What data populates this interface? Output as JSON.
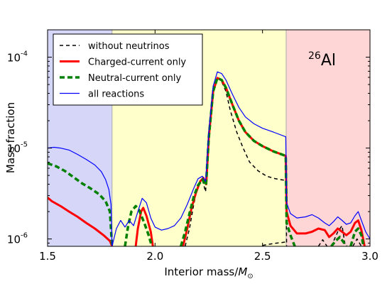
{
  "chart_data": {
    "type": "line",
    "title": "",
    "annotation": {
      "sup": "26",
      "text": "Al"
    },
    "xlabel": "Interior mass/",
    "xlabel_symbol": "M",
    "xlabel_sub": "⊙",
    "ylabel": "Mass fraction",
    "xlim": [
      1.5,
      3.0
    ],
    "ylim": [
      8.3e-07,
      0.0002
    ],
    "yscale": "log",
    "x_ticks": [
      1.5,
      2.0,
      2.5,
      3.0
    ],
    "x_tick_labels": [
      "1.5",
      "2.0",
      "2.5",
      "3.0"
    ],
    "y_ticks": [
      {
        "value": 1e-06,
        "base": "10",
        "exp": "-6"
      },
      {
        "value": 1e-05,
        "base": "10",
        "exp": "-5"
      },
      {
        "value": 0.0001,
        "base": "10",
        "exp": "-4"
      }
    ],
    "regions": [
      {
        "x0": 1.5,
        "x1": 1.8,
        "color": "#d5d6f8"
      },
      {
        "x0": 1.8,
        "x1": 2.61,
        "color": "#ffffcc"
      },
      {
        "x0": 2.61,
        "x1": 3.0,
        "color": "#ffd6d6"
      }
    ],
    "legend_position": "top-left",
    "series": [
      {
        "name": "without neutrinos",
        "color": "#000000",
        "width": 1.5,
        "dash": "5,4",
        "points": [
          [
            2.14,
            8.3e-07
          ],
          [
            2.16,
            1.3e-06
          ],
          [
            2.18,
            2.4e-06
          ],
          [
            2.2,
            4e-06
          ],
          [
            2.22,
            4.5e-06
          ],
          [
            2.235,
            3.3e-06
          ],
          [
            2.25,
            1.5e-05
          ],
          [
            2.27,
            4.5e-05
          ],
          [
            2.29,
            6e-05
          ],
          [
            2.31,
            5.4e-05
          ],
          [
            2.33,
            4.2e-05
          ],
          [
            2.35,
            2.6e-05
          ],
          [
            2.38,
            1.5e-05
          ],
          [
            2.41,
            1e-05
          ],
          [
            2.44,
            7e-06
          ],
          [
            2.48,
            5.6e-06
          ],
          [
            2.52,
            4.9e-06
          ],
          [
            2.56,
            4.6e-06
          ],
          [
            2.608,
            4.4e-06
          ],
          [
            2.612,
            8.3e-07
          ]
        ],
        "extra_segments": [
          [
            [
              2.5,
              8.5e-07
            ],
            [
              2.55,
              8.9e-07
            ],
            [
              2.6,
              9.2e-07
            ],
            [
              2.608,
              9.3e-07
            ]
          ],
          [
            [
              2.76,
              8.3e-07
            ],
            [
              2.78,
              9.8e-07
            ],
            [
              2.8,
              8.3e-07
            ]
          ],
          [
            [
              2.82,
              8.3e-07
            ],
            [
              2.85,
              1.2e-06
            ],
            [
              2.87,
              1.4e-06
            ],
            [
              2.885,
              8.3e-07
            ]
          ],
          [
            [
              2.92,
              8.3e-07
            ],
            [
              2.94,
              1e-06
            ],
            [
              2.96,
              8.3e-07
            ]
          ]
        ]
      },
      {
        "name": "Charged-current only",
        "color": "#ff0000",
        "width": 3,
        "dash": "",
        "points": [
          [
            1.5,
            2.85e-06
          ],
          [
            1.52,
            2.6e-06
          ],
          [
            1.56,
            2.3e-06
          ],
          [
            1.6,
            2e-06
          ],
          [
            1.64,
            1.75e-06
          ],
          [
            1.68,
            1.5e-06
          ],
          [
            1.72,
            1.3e-06
          ],
          [
            1.76,
            1.1e-06
          ],
          [
            1.79,
            9.5e-07
          ],
          [
            1.8,
            8.3e-07
          ]
        ],
        "extra_segments": [
          [
            [
              1.91,
              8.3e-07
            ],
            [
              1.92,
              1.3e-06
            ],
            [
              1.935,
              2e-06
            ],
            [
              1.945,
              2.2e-06
            ],
            [
              1.96,
              1.8e-06
            ],
            [
              1.98,
              1.2e-06
            ],
            [
              1.99,
              8.3e-07
            ]
          ],
          [
            [
              2.13,
              8.3e-07
            ],
            [
              2.15,
              1.3e-06
            ],
            [
              2.17,
              2.2e-06
            ],
            [
              2.19,
              3.2e-06
            ],
            [
              2.21,
              4.3e-06
            ],
            [
              2.225,
              4.7e-06
            ],
            [
              2.238,
              4e-06
            ],
            [
              2.25,
              1.3e-05
            ],
            [
              2.27,
              4.2e-05
            ],
            [
              2.29,
              5.9e-05
            ],
            [
              2.31,
              5.6e-05
            ],
            [
              2.33,
              4.6e-05
            ],
            [
              2.36,
              3e-05
            ],
            [
              2.39,
              2e-05
            ],
            [
              2.42,
              1.5e-05
            ],
            [
              2.46,
              1.2e-05
            ],
            [
              2.5,
              1.05e-05
            ],
            [
              2.55,
              9.2e-06
            ],
            [
              2.608,
              8.2e-06
            ],
            [
              2.612,
              2e-06
            ],
            [
              2.63,
              1.4e-06
            ],
            [
              2.66,
              1.15e-06
            ],
            [
              2.7,
              1.15e-06
            ],
            [
              2.73,
              1.2e-06
            ],
            [
              2.76,
              1.3e-06
            ],
            [
              2.79,
              1.25e-06
            ],
            [
              2.81,
              1.05e-06
            ],
            [
              2.83,
              1.15e-06
            ],
            [
              2.85,
              1.3e-06
            ],
            [
              2.87,
              1.2e-06
            ],
            [
              2.89,
              1.1e-06
            ],
            [
              2.91,
              1.2e-06
            ],
            [
              2.93,
              1.5e-06
            ],
            [
              2.945,
              1.6e-06
            ],
            [
              2.96,
              1.25e-06
            ],
            [
              2.975,
              8.3e-07
            ]
          ]
        ]
      },
      {
        "name": "Neutral-current only",
        "color": "#008000",
        "width": 3.5,
        "dash": "7,4",
        "points": [
          [
            1.5,
            6.8e-06
          ],
          [
            1.54,
            6.3e-06
          ],
          [
            1.58,
            5.6e-06
          ],
          [
            1.62,
            4.8e-06
          ],
          [
            1.66,
            4.1e-06
          ],
          [
            1.7,
            3.6e-06
          ],
          [
            1.74,
            3.1e-06
          ],
          [
            1.77,
            2.6e-06
          ],
          [
            1.79,
            2e-06
          ],
          [
            1.8,
            8.3e-07
          ]
        ],
        "extra_segments": [
          [
            [
              1.86,
              8.3e-07
            ],
            [
              1.875,
              1.4e-06
            ],
            [
              1.89,
              2e-06
            ],
            [
              1.91,
              2.3e-06
            ],
            [
              1.925,
              2.1e-06
            ],
            [
              1.95,
              1.5e-06
            ],
            [
              1.97,
              1.1e-06
            ],
            [
              1.985,
              8.3e-07
            ]
          ],
          [
            [
              2.12,
              8.3e-07
            ],
            [
              2.14,
              1.2e-06
            ],
            [
              2.16,
              1.9e-06
            ],
            [
              2.18,
              2.9e-06
            ],
            [
              2.2,
              3.9e-06
            ],
            [
              2.22,
              4.5e-06
            ],
            [
              2.237,
              3.9e-06
            ],
            [
              2.25,
              1.3e-05
            ],
            [
              2.27,
              4.2e-05
            ],
            [
              2.29,
              5.9e-05
            ],
            [
              2.31,
              5.6e-05
            ],
            [
              2.33,
              4.6e-05
            ],
            [
              2.36,
              3e-05
            ],
            [
              2.39,
              2e-05
            ],
            [
              2.42,
              1.5e-05
            ],
            [
              2.46,
              1.2e-05
            ],
            [
              2.5,
              1.05e-05
            ],
            [
              2.55,
              9.2e-06
            ],
            [
              2.608,
              8.2e-06
            ],
            [
              2.612,
              1.5e-06
            ],
            [
              2.63,
              1.1e-06
            ],
            [
              2.65,
              8.3e-07
            ]
          ],
          [
            [
              2.82,
              8.3e-07
            ],
            [
              2.84,
              9.5e-07
            ],
            [
              2.86,
              1.05e-06
            ],
            [
              2.88,
              9e-07
            ],
            [
              2.89,
              8.3e-07
            ]
          ],
          [
            [
              2.91,
              8.3e-07
            ],
            [
              2.93,
              1.2e-06
            ],
            [
              2.945,
              1.3e-06
            ],
            [
              2.96,
              1.1e-06
            ],
            [
              2.97,
              8.3e-07
            ]
          ]
        ]
      },
      {
        "name": "all reactions",
        "color": "#0000ff",
        "width": 1.2,
        "dash": "",
        "points": [
          [
            1.5,
            1e-05
          ],
          [
            1.53,
            1.02e-05
          ],
          [
            1.56,
            1e-05
          ],
          [
            1.6,
            9.5e-06
          ],
          [
            1.64,
            8.5e-06
          ],
          [
            1.68,
            7.5e-06
          ],
          [
            1.72,
            6.5e-06
          ],
          [
            1.75,
            5.5e-06
          ],
          [
            1.77,
            4.5e-06
          ],
          [
            1.785,
            3.5e-06
          ],
          [
            1.795,
            2.4e-06
          ],
          [
            1.8,
            8.3e-07
          ]
        ],
        "extra_segments": [
          [
            [
              1.8,
              8.3e-07
            ],
            [
              1.82,
              1.3e-06
            ],
            [
              1.84,
              1.6e-06
            ],
            [
              1.86,
              1.35e-06
            ],
            [
              1.88,
              1.6e-06
            ],
            [
              1.9,
              1.4e-06
            ],
            [
              1.92,
              2e-06
            ],
            [
              1.94,
              2.8e-06
            ],
            [
              1.96,
              2.5e-06
            ],
            [
              1.98,
              1.7e-06
            ],
            [
              2.0,
              1.35e-06
            ],
            [
              2.03,
              1.25e-06
            ],
            [
              2.06,
              1.3e-06
            ],
            [
              2.09,
              1.4e-06
            ],
            [
              2.12,
              1.7e-06
            ],
            [
              2.15,
              2.4e-06
            ],
            [
              2.18,
              3.6e-06
            ],
            [
              2.2,
              4.6e-06
            ],
            [
              2.22,
              4.9e-06
            ],
            [
              2.235,
              4.3e-06
            ],
            [
              2.25,
              1.5e-05
            ],
            [
              2.27,
              4.8e-05
            ],
            [
              2.29,
              6.9e-05
            ],
            [
              2.31,
              6.6e-05
            ],
            [
              2.33,
              5.6e-05
            ],
            [
              2.36,
              3.9e-05
            ],
            [
              2.39,
              2.8e-05
            ],
            [
              2.42,
              2.2e-05
            ],
            [
              2.46,
              1.85e-05
            ],
            [
              2.5,
              1.65e-05
            ],
            [
              2.55,
              1.5e-05
            ],
            [
              2.608,
              1.33e-05
            ],
            [
              2.612,
              2.5e-06
            ],
            [
              2.63,
              1.9e-06
            ],
            [
              2.66,
              1.7e-06
            ],
            [
              2.7,
              1.75e-06
            ],
            [
              2.73,
              1.85e-06
            ],
            [
              2.76,
              1.7e-06
            ],
            [
              2.79,
              1.5e-06
            ],
            [
              2.81,
              1.4e-06
            ],
            [
              2.83,
              1.55e-06
            ],
            [
              2.85,
              1.75e-06
            ],
            [
              2.87,
              1.6e-06
            ],
            [
              2.89,
              1.45e-06
            ],
            [
              2.91,
              1.5e-06
            ],
            [
              2.93,
              1.8e-06
            ],
            [
              2.945,
              2e-06
            ],
            [
              2.96,
              1.6e-06
            ],
            [
              2.98,
              1.2e-06
            ],
            [
              3.0,
              1e-06
            ]
          ]
        ]
      }
    ]
  }
}
